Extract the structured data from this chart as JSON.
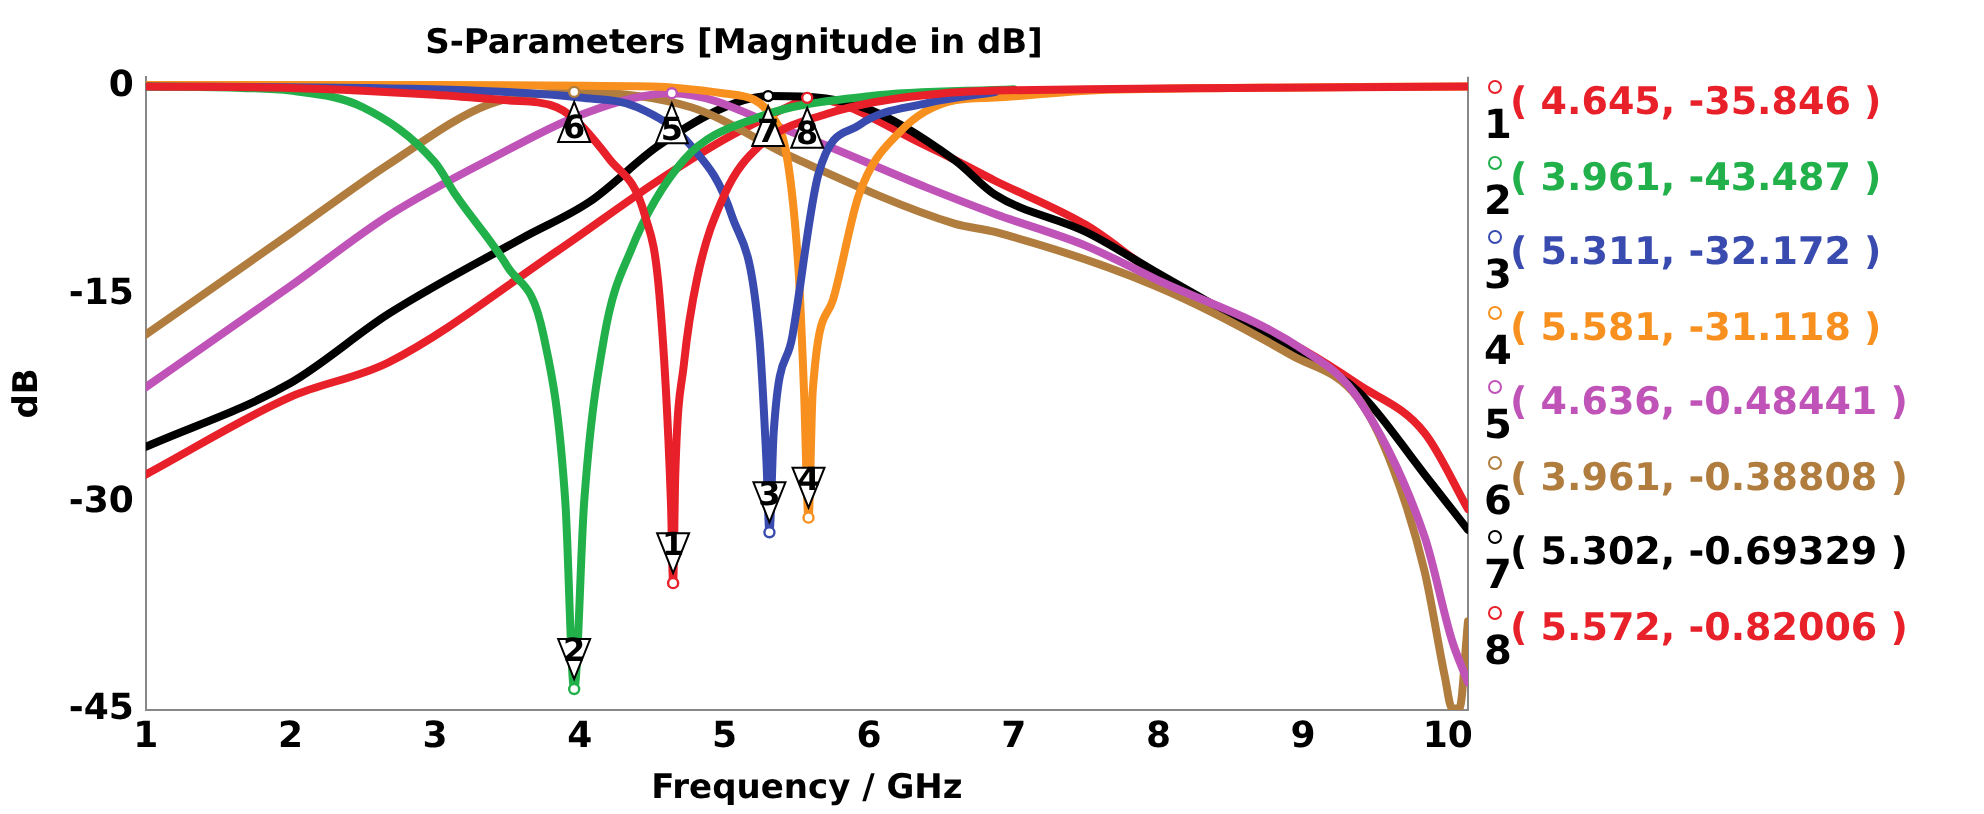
{
  "chart_data": {
    "type": "line",
    "title": "S-Parameters [Magnitude in dB]",
    "xlabel": "Frequency / GHz",
    "ylabel": "dB",
    "xlim": [
      1,
      10.14
    ],
    "xticks": [
      1,
      2,
      3,
      4,
      5,
      6,
      7,
      8,
      9,
      10
    ],
    "ylim": [
      -45,
      0.7
    ],
    "yticks": [
      0,
      -15,
      -30,
      -45
    ],
    "grid": false,
    "legend": false,
    "marker": "none",
    "line_style": "solid",
    "series": [
      {
        "color": "#e8202a",
        "x": [
          1,
          2,
          2.5,
          3,
          3.5,
          3.84,
          4.21,
          4.45,
          4.55,
          4.63,
          4.645,
          4.66,
          4.72,
          4.81,
          5.0,
          5.24,
          5.7,
          6.5,
          7.5,
          8.5,
          10.14
        ],
        "values": [
          0,
          -0.1,
          -0.3,
          -0.6,
          -1.0,
          -1.5,
          -5.3,
          -9.3,
          -15,
          -30,
          -35.846,
          -28,
          -20,
          -13.9,
          -7.8,
          -4.3,
          -2.0,
          -0.5,
          -0.2,
          -0.1,
          0
        ]
      },
      {
        "color": "#22b04b",
        "x": [
          1,
          1.66,
          2,
          2.5,
          3,
          3.14,
          3.5,
          3.75,
          3.9,
          3.961,
          4.03,
          4.17,
          4.35,
          4.72,
          5.24,
          6,
          7
        ],
        "values": [
          0,
          -0.1,
          -0.3,
          -1.5,
          -5.5,
          -7.8,
          -13,
          -18,
          -30,
          -43.487,
          -30,
          -18,
          -11.9,
          -5.3,
          -2.2,
          -0.7,
          -0.2
        ]
      },
      {
        "color": "#3a4bb0",
        "x": [
          1,
          2.5,
          3.5,
          4.0,
          4.4,
          4.77,
          5.05,
          5.24,
          5.29,
          5.311,
          5.34,
          5.47,
          5.65,
          5.93,
          6.4,
          6.87
        ],
        "values": [
          0,
          -0.1,
          -0.4,
          -0.8,
          -1.5,
          -4.3,
          -9.3,
          -18,
          -27,
          -32.172,
          -25,
          -18,
          -6.3,
          -2.8,
          -1.2,
          -0.4
        ]
      },
      {
        "color": "#f7901e",
        "x": [
          1,
          3,
          4.5,
          5.0,
          5.37,
          5.51,
          5.55,
          5.581,
          5.61,
          5.75,
          5.93,
          6.21,
          6.59,
          6.87,
          7.5,
          8.5,
          10.14
        ],
        "values": [
          0.1,
          0.1,
          0,
          -0.5,
          -2.8,
          -12.9,
          -22,
          -31.118,
          -22,
          -15.4,
          -7.8,
          -3.3,
          -1.0,
          -0.8,
          -0.3,
          -0.1,
          0
        ]
      },
      {
        "color": "#c053b8",
        "x": [
          1,
          2,
          2.68,
          3.37,
          4.07,
          4.636,
          5.47,
          6.4,
          6.87,
          7.5,
          7.98,
          9,
          9.38,
          9.84,
          10.03,
          10.14
        ],
        "values": [
          -21.7,
          -14.4,
          -9.3,
          -5.3,
          -1.8,
          -0.48441,
          -3.3,
          -7.3,
          -9.2,
          -11.5,
          -13.9,
          -19,
          -22.5,
          -32.5,
          -40,
          -43
        ]
      },
      {
        "color": "#b07d3e",
        "x": [
          1,
          2,
          2.68,
          3.37,
          3.961,
          4.77,
          5.47,
          6.59,
          6.87,
          7.98,
          8.92,
          9.38,
          9.62,
          9.84,
          9.98,
          10.03,
          10.08,
          10.14
        ],
        "values": [
          -17.9,
          -10.6,
          -5.6,
          -1.3,
          -0.38808,
          -1.5,
          -5.1,
          -9.9,
          -10.5,
          -14.4,
          -19.4,
          -22.5,
          -27.5,
          -35,
          -42.6,
          -44.9,
          -44.9,
          -38.6
        ]
      },
      {
        "color": "#000000",
        "x": [
          1,
          2,
          2.68,
          3.61,
          4.07,
          4.54,
          5.0,
          5.302,
          5.93,
          6.59,
          6.87,
          7.5,
          8,
          9,
          9.38,
          9.84,
          10.14
        ],
        "values": [
          -26,
          -21.4,
          -16.4,
          -10.9,
          -8.3,
          -4.3,
          -1.5,
          -0.69329,
          -1.4,
          -5.3,
          -7.8,
          -10.5,
          -13.5,
          -19.5,
          -22,
          -28,
          -32
        ]
      },
      {
        "color": "#e8202a",
        "x": [
          1,
          2,
          2.68,
          3.84,
          4.54,
          5.0,
          5.47,
          5.572,
          6.4,
          6.87,
          7.5,
          7.98,
          9,
          9.38,
          9.84,
          10.14
        ],
        "values": [
          -28,
          -22.4,
          -19.9,
          -11.9,
          -6.8,
          -3.8,
          -1.3,
          -0.82006,
          -4.3,
          -6.8,
          -10,
          -13.5,
          -19,
          -21.5,
          -25,
          -30.5
        ]
      }
    ],
    "annotations": [
      {
        "text": "1",
        "x": 4.645,
        "y": -35.846
      },
      {
        "text": "2",
        "x": 3.961,
        "y": -43.487
      },
      {
        "text": "3",
        "x": 5.311,
        "y": -32.172
      },
      {
        "text": "4",
        "x": 5.581,
        "y": -31.118
      },
      {
        "text": "5",
        "x": 4.636,
        "y": -0.48441
      },
      {
        "text": "6",
        "x": 3.961,
        "y": -0.38808
      },
      {
        "text": "7",
        "x": 5.302,
        "y": -0.69329
      },
      {
        "text": "8",
        "x": 5.572,
        "y": -0.82006
      },
      "( 4.645, -35.846 )",
      "( 3.961, -43.487 )",
      "( 5.311, -32.172 )",
      "( 5.581, -31.118 )",
      "( 4.636, -0.48441 )",
      "( 3.961, -0.38808 )",
      "( 5.302, -0.69329 )",
      "( 5.572, -0.82006 )"
    ]
  }
}
